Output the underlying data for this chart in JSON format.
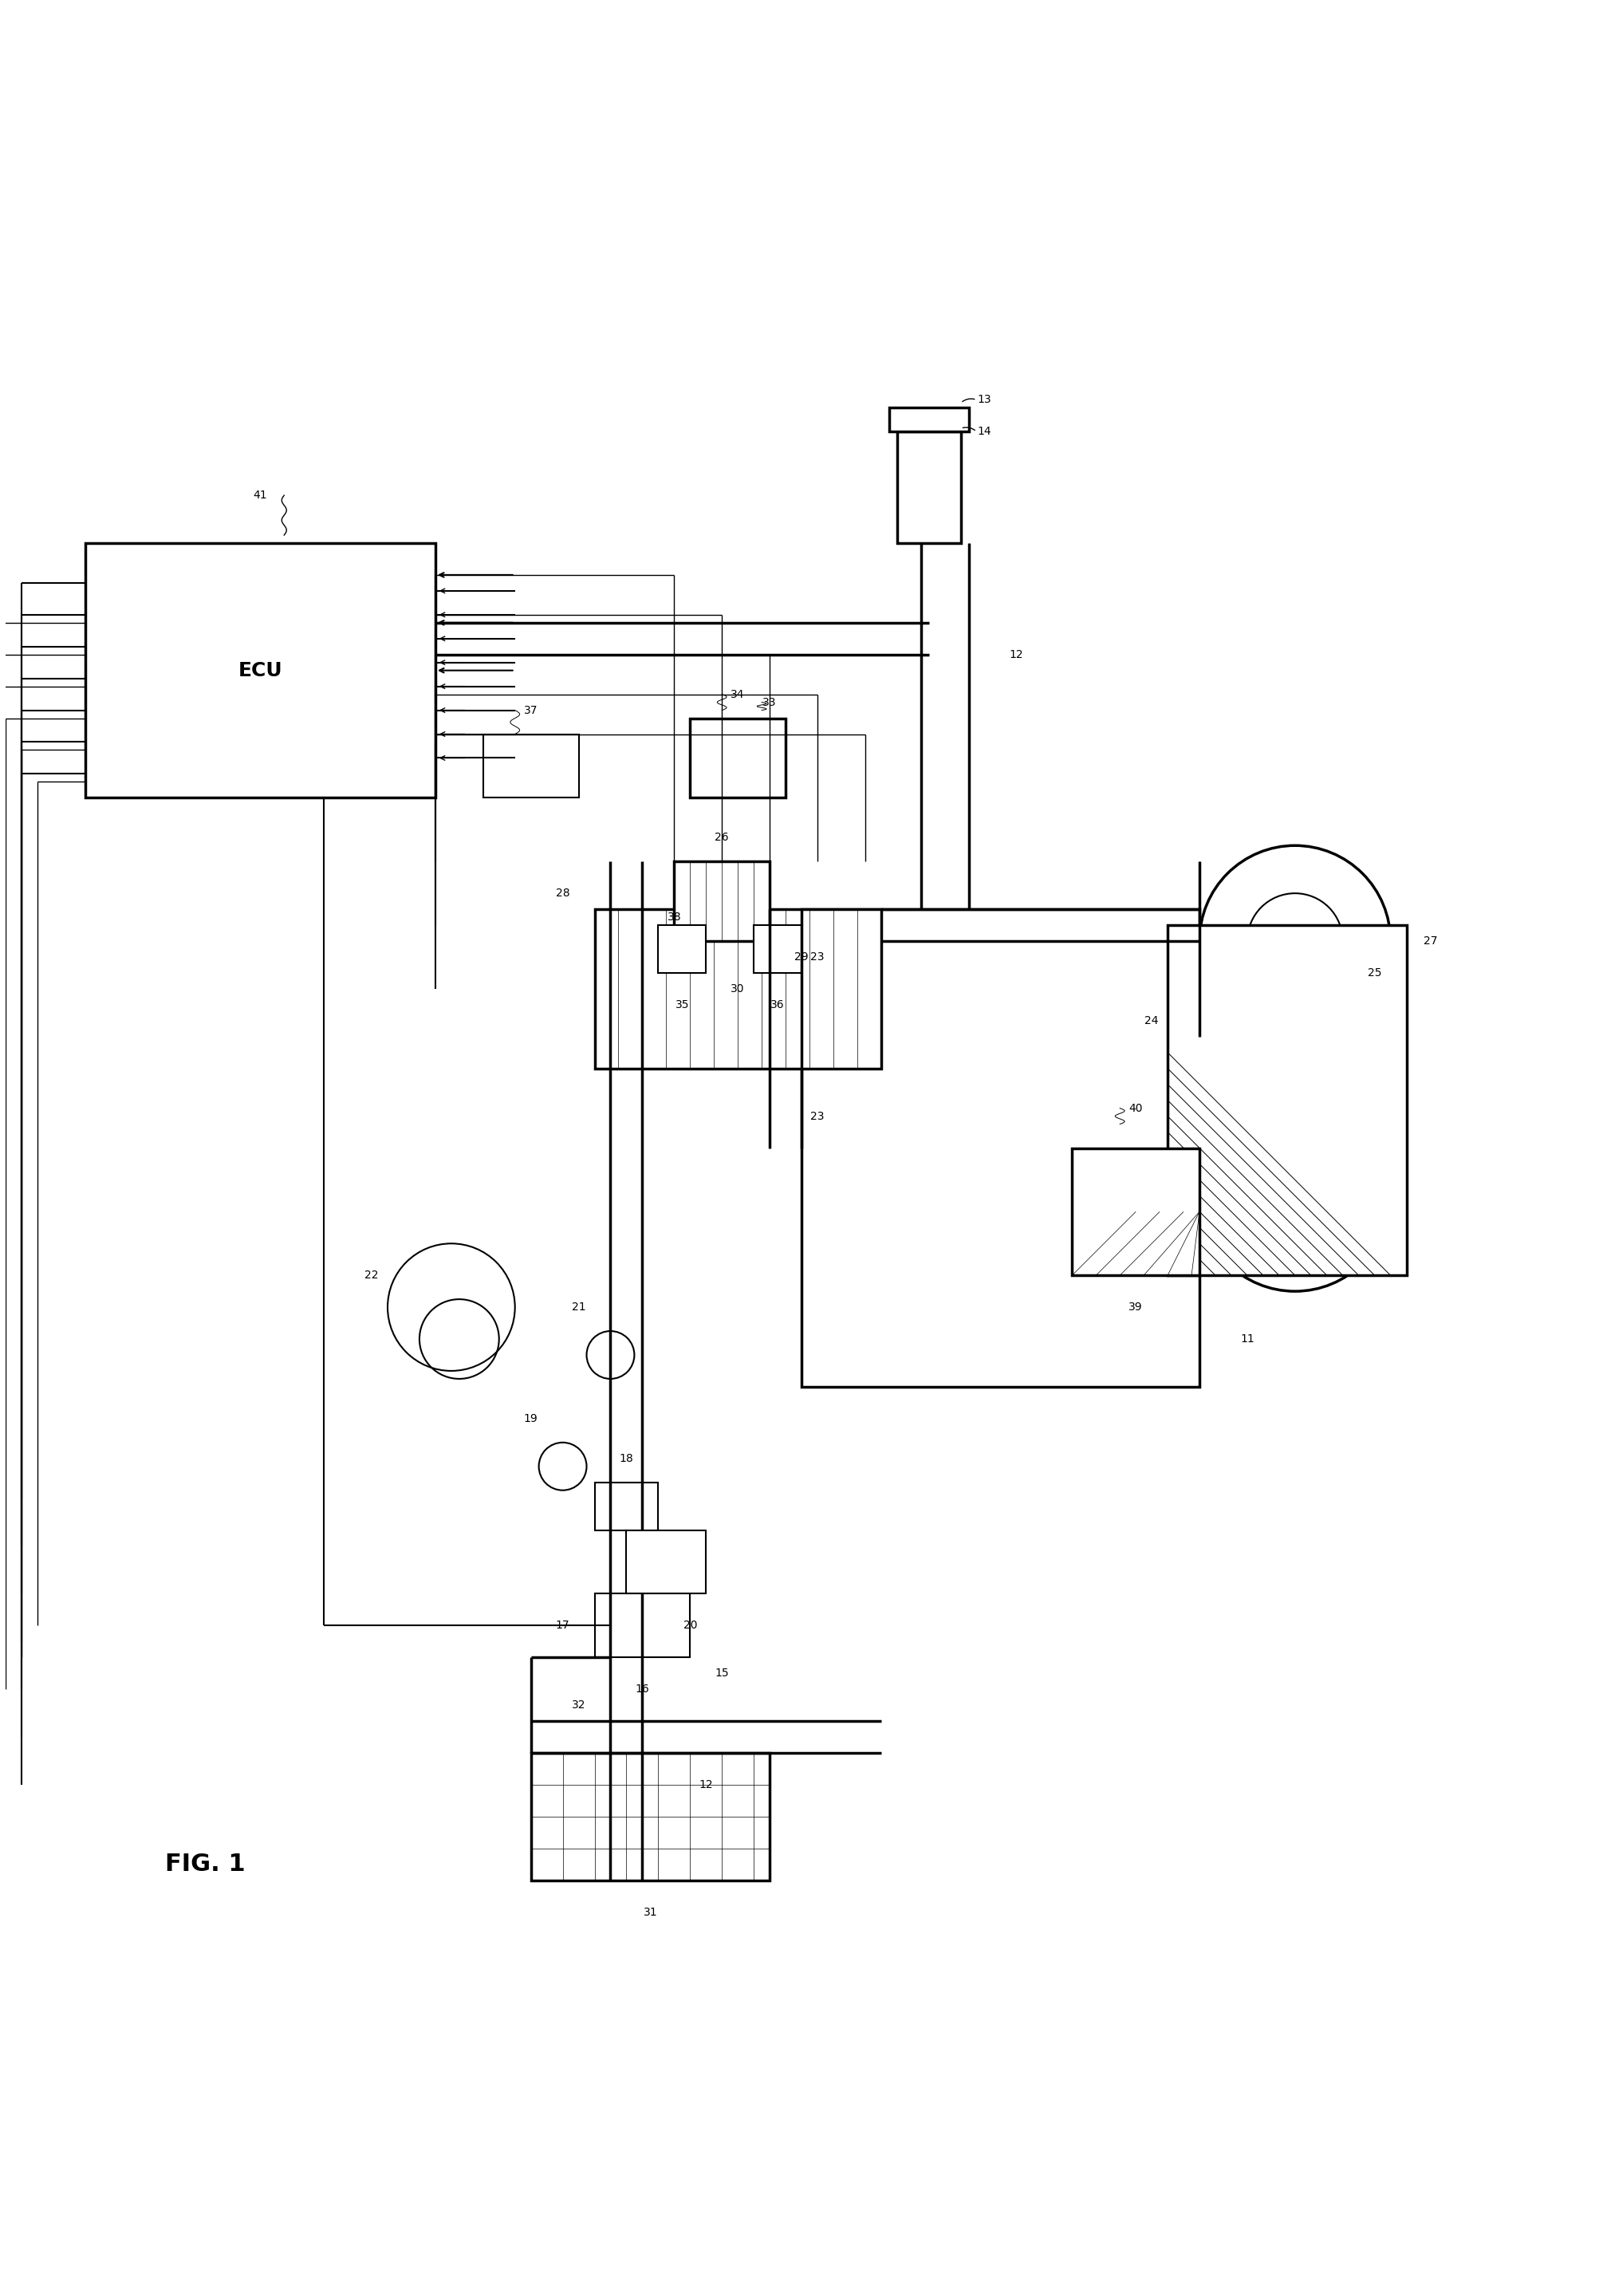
{
  "title": "FIG. 1",
  "background_color": "#ffffff",
  "line_color": "#000000",
  "fig_width": 20.1,
  "fig_height": 28.79,
  "labels": {
    "fig_label": "FIG. 1",
    "ecu_label": "ECU",
    "label_41": "41",
    "label_11": "11",
    "label_12a": "12",
    "label_12b": "12",
    "label_13": "13",
    "label_14": "14",
    "label_15": "15",
    "label_16": "16",
    "label_17": "17",
    "label_18": "18",
    "label_19": "19",
    "label_20": "20",
    "label_21": "21",
    "label_22": "22",
    "label_23a": "23",
    "label_23b": "23",
    "label_24": "24",
    "label_25": "25",
    "label_26": "26",
    "label_27": "27",
    "label_28": "28",
    "label_29": "29",
    "label_30": "30",
    "label_31": "31",
    "label_32": "32",
    "label_33": "33",
    "label_34": "34",
    "label_35": "35",
    "label_36": "36",
    "label_37": "37",
    "label_38": "38",
    "label_39": "39",
    "label_40": "40"
  }
}
